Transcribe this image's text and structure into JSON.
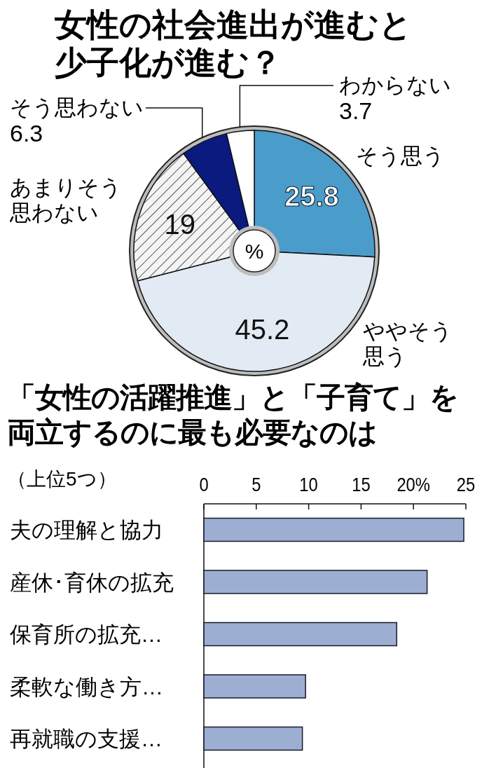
{
  "chart_data": [
    {
      "type": "donut",
      "title": "女性の社会進出が進むと少子化が進む？",
      "categories": [
        "そう思う",
        "ややそう思う",
        "あまりそう思わない",
        "そう思わない",
        "わからない"
      ],
      "values": [
        25.8,
        45.2,
        19,
        6.3,
        3.7
      ],
      "colors": [
        "#4a9ccb",
        "#e2eaf3",
        "#f4f4f4",
        "#0a1a7e",
        "#ffffff"
      ],
      "data_labels": true,
      "annotations": [
        "%"
      ]
    },
    {
      "type": "bar",
      "orientation": "horizontal",
      "title": "「女性の活躍推進」と「子育て」を両立するのに最も必要なのは",
      "subtitle": "（上位5つ）",
      "categories": [
        "夫の理解と協力",
        "産休･育休の拡充",
        "保育所の拡充…",
        "柔軟な働き方…",
        "再就職の支援…"
      ],
      "values": [
        24.8,
        21.3,
        18.4,
        9.7,
        9.4
      ],
      "color": "#9caed2",
      "xlim": [
        0,
        25
      ],
      "xticks": [
        0,
        5,
        10,
        15,
        {
          "value": 20,
          "label": "20%"
        },
        25
      ],
      "grid": false
    }
  ]
}
